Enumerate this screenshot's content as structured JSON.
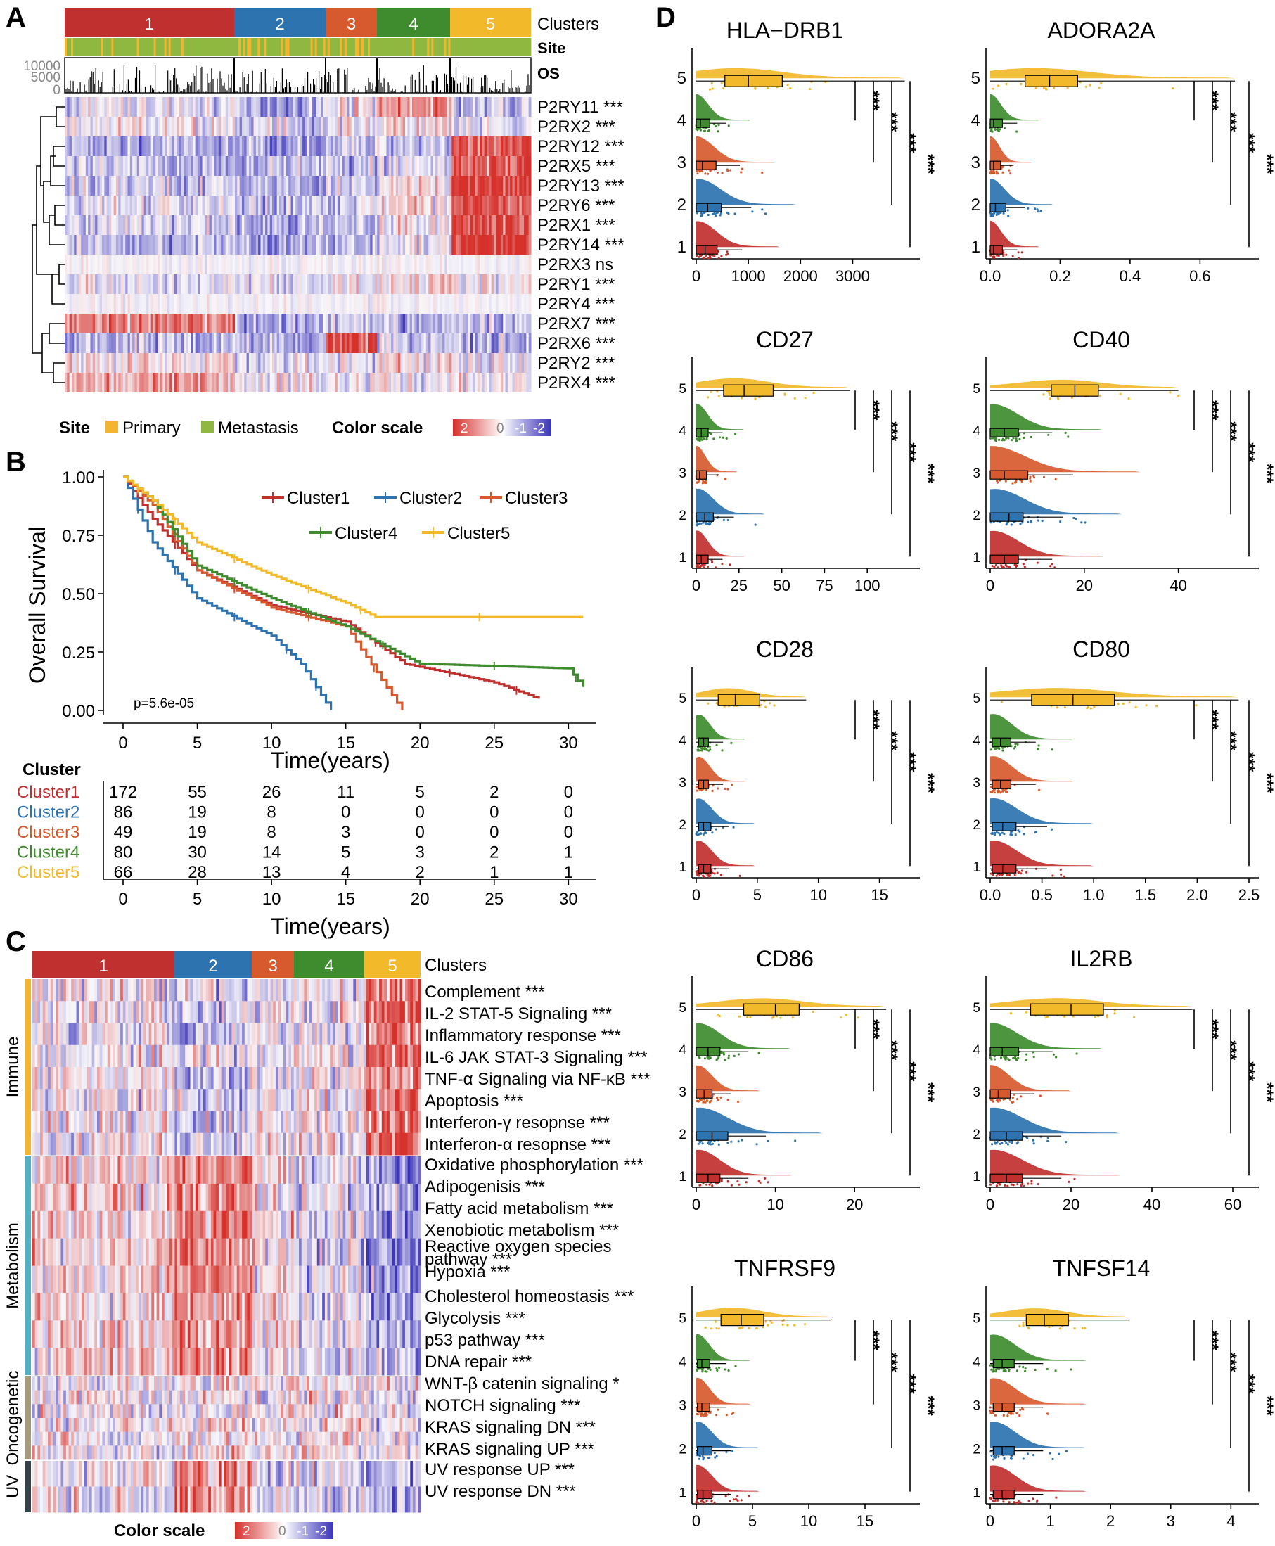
{
  "colors": {
    "c1": "#c0302f",
    "c2": "#2d73b0",
    "c3": "#d75a2e",
    "c4": "#3f8c2f",
    "c5": "#f2b92a",
    "primary": "#f3b42f",
    "metastasis": "#8fb840",
    "hi": "#d6312b",
    "mid": "#ffffff",
    "lo": "#3a33b8",
    "immune": "#f3b42f",
    "metabolism": "#52b2c4",
    "oncogenetic": "#a59a7c",
    "uv": "#36424a"
  },
  "panelA": {
    "label": "A",
    "clusters_label": "Clusters",
    "site_label": "Site",
    "os_label": "OS",
    "cluster_names": [
      "1",
      "2",
      "3",
      "4",
      "5"
    ],
    "os_ticks": [
      "10000",
      "5000",
      "0"
    ],
    "genes": [
      "P2RY11 ***",
      "P2RX2 ***",
      "P2RY12 ***",
      "P2RX5 ***",
      "P2RY13 ***",
      "P2RY6 ***",
      "P2RX1 ***",
      "P2RY14 ***",
      "P2RX3 ns",
      "P2RY1 ***",
      "P2RY4 ***",
      "P2RX7 ***",
      "P2RX6 ***",
      "P2RY2 ***",
      "P2RX4 ***"
    ],
    "legend": {
      "site": "Site",
      "primary": "Primary",
      "metastasis": "Metastasis",
      "color_scale": "Color scale",
      "scale_ticks": [
        "2",
        "0",
        "-1",
        "-2"
      ]
    }
  },
  "panelB": {
    "label": "B",
    "ylabel": "Overall Survival",
    "xlabel": "Time(years)",
    "pvalue": "p=5.6e-05",
    "x_ticks": [
      "0",
      "5",
      "10",
      "15",
      "20",
      "25",
      "30"
    ],
    "y_ticks": [
      "1.00",
      "0.75",
      "0.50",
      "0.25",
      "0.00"
    ],
    "legend": [
      "Cluster1",
      "Cluster2",
      "Cluster3",
      "Cluster4",
      "Cluster5"
    ],
    "risk_title": "Cluster",
    "risk": [
      [
        "172",
        "55",
        "26",
        "11",
        "5",
        "2",
        "0"
      ],
      [
        "86",
        "19",
        "8",
        "0",
        "0",
        "0",
        "0"
      ],
      [
        "49",
        "19",
        "8",
        "3",
        "0",
        "0",
        "0"
      ],
      [
        "80",
        "30",
        "14",
        "5",
        "3",
        "2",
        "1"
      ],
      [
        "66",
        "28",
        "13",
        "4",
        "2",
        "1",
        "1"
      ]
    ]
  },
  "panelC": {
    "label": "C",
    "clusters_label": "Clusters",
    "cluster_names": [
      "1",
      "2",
      "3",
      "4",
      "5"
    ],
    "groups": [
      "Immune",
      "Metabolism",
      "Oncogenetic",
      "UV"
    ],
    "pathways": [
      "Complement ***",
      "IL-2 STAT-5 Signaling ***",
      "Inflammatory response ***",
      "IL-6 JAK STAT-3 Signaling ***",
      "TNF-α Signaling via NF-κB ***",
      "Apoptosis ***",
      "Interferon-γ resopnse ***",
      "Interferon-α resopnse ***",
      "Oxidative phosphorylation ***",
      "Adipogenisis ***",
      "Fatty acid metabolism ***",
      "Xenobiotic metabolism ***",
      "Reactive oxygen species",
      "pathway ***",
      "Hypoxia ***",
      "Cholesterol homeostasis ***",
      "Glycolysis ***",
      "p53 pathway ***",
      "DNA repair ***",
      "WNT-β catenin signaling *",
      "NOTCH signaling ***",
      "KRAS signaling DN ***",
      "KRAS signaling UP ***",
      "UV response UP ***",
      "UV response DN ***"
    ],
    "color_scale": "Color scale",
    "scale_ticks": [
      "2",
      "0",
      "-1",
      "-2"
    ]
  },
  "panelD": {
    "label": "D",
    "sig": "***",
    "cluster_ticks": [
      "1",
      "2",
      "3",
      "4",
      "5"
    ],
    "genes": [
      {
        "name": "HLA−DRB1",
        "ticks": [
          "0",
          "1000",
          "2000",
          "3000"
        ],
        "tickvals": [
          0,
          1000,
          2000,
          3000
        ],
        "xmax": 4100,
        "q1": [
          0,
          170,
          400
        ],
        "q2": [
          0,
          220,
          480
        ],
        "q3": [
          0,
          120,
          380
        ],
        "q4": [
          0,
          80,
          260
        ],
        "q5": [
          550,
          1000,
          1650
        ],
        "w5": 4000
      },
      {
        "name": "ADORA2A",
        "ticks": [
          "0.0",
          "0.2",
          "0.4",
          "0.6"
        ],
        "tickvals": [
          0,
          0.2,
          0.4,
          0.6
        ],
        "xmax": 0.74,
        "q1": [
          0,
          0.01,
          0.035
        ],
        "q2": [
          0,
          0.015,
          0.045
        ],
        "q3": [
          0,
          0.01,
          0.03
        ],
        "q4": [
          0,
          0.01,
          0.035
        ],
        "q5": [
          0.1,
          0.17,
          0.25
        ],
        "w5": 0.7
      },
      {
        "name": "CD27",
        "ticks": [
          "0",
          "25",
          "50",
          "75",
          "100"
        ],
        "tickvals": [
          0,
          25,
          50,
          75,
          100
        ],
        "xmax": 125,
        "q1": [
          0,
          3,
          7
        ],
        "q2": [
          0,
          5,
          10
        ],
        "q3": [
          0,
          2,
          6
        ],
        "q4": [
          0,
          3,
          7
        ],
        "q5": [
          16,
          28,
          45
        ],
        "w5": 90
      },
      {
        "name": "CD40",
        "ticks": [
          "0",
          "20",
          "40"
        ],
        "tickvals": [
          0,
          20,
          40
        ],
        "xmax": 55,
        "q1": [
          0,
          3,
          6
        ],
        "q2": [
          0,
          4,
          7
        ],
        "q3": [
          0,
          3,
          8
        ],
        "q4": [
          0,
          3,
          6
        ],
        "q5": [
          13,
          18,
          23
        ],
        "w5": 40
      },
      {
        "name": "CD28",
        "ticks": [
          "0",
          "5",
          "10",
          "15"
        ],
        "tickvals": [
          0,
          5,
          10,
          15
        ],
        "xmax": 17.5,
        "q1": [
          0.2,
          0.6,
          1.2
        ],
        "q2": [
          0.2,
          0.6,
          1.2
        ],
        "q3": [
          0.2,
          0.6,
          1
        ],
        "q4": [
          0.2,
          0.6,
          1
        ],
        "q5": [
          1.8,
          3.2,
          5.2
        ],
        "w5": 9
      },
      {
        "name": "CD80",
        "ticks": [
          "0.0",
          "0.5",
          "1.0",
          "1.5",
          "2.0",
          "2.5"
        ],
        "tickvals": [
          0,
          0.5,
          1,
          1.5,
          2,
          2.5
        ],
        "xmax": 2.5,
        "q1": [
          0.02,
          0.12,
          0.25
        ],
        "q2": [
          0.02,
          0.12,
          0.25
        ],
        "q3": [
          0.02,
          0.1,
          0.2
        ],
        "q4": [
          0.02,
          0.1,
          0.2
        ],
        "q5": [
          0.4,
          0.8,
          1.2
        ],
        "w5": 2.4
      },
      {
        "name": "CD86",
        "ticks": [
          "0",
          "10",
          "20"
        ],
        "tickvals": [
          0,
          10,
          20
        ],
        "xmax": 27,
        "q1": [
          0,
          1.5,
          3
        ],
        "q2": [
          0,
          2,
          4
        ],
        "q3": [
          0,
          1,
          2
        ],
        "q4": [
          0,
          1.5,
          3
        ],
        "q5": [
          6,
          10,
          13
        ],
        "w5": 24
      },
      {
        "name": "IL2RB",
        "ticks": [
          "0",
          "20",
          "40",
          "60"
        ],
        "tickvals": [
          0,
          20,
          40,
          60
        ],
        "xmax": 64,
        "q1": [
          0,
          4,
          8
        ],
        "q2": [
          0,
          4,
          8
        ],
        "q3": [
          0,
          2,
          5
        ],
        "q4": [
          0,
          3,
          7
        ],
        "q5": [
          10,
          20,
          28
        ],
        "w5": 50
      },
      {
        "name": "TNFRSF9",
        "ticks": [
          "0",
          "5",
          "10",
          "15"
        ],
        "tickvals": [
          0,
          5,
          10,
          15
        ],
        "xmax": 19,
        "q1": [
          0.1,
          0.6,
          1.4
        ],
        "q2": [
          0.1,
          0.6,
          1.4
        ],
        "q3": [
          0.1,
          0.5,
          1.2
        ],
        "q4": [
          0.1,
          0.5,
          1.2
        ],
        "q5": [
          2.2,
          4,
          6
        ],
        "w5": 12
      },
      {
        "name": "TNFSF14",
        "ticks": [
          "0",
          "1",
          "2",
          "3",
          "4"
        ],
        "tickvals": [
          0,
          1,
          2,
          3,
          4
        ],
        "xmax": 4.3,
        "q1": [
          0.05,
          0.2,
          0.4
        ],
        "q2": [
          0.05,
          0.2,
          0.4
        ],
        "q3": [
          0.05,
          0.2,
          0.4
        ],
        "q4": [
          0.05,
          0.2,
          0.4
        ],
        "q5": [
          0.6,
          0.9,
          1.3
        ],
        "w5": 2.3
      }
    ]
  },
  "chart_data": [
    {
      "type": "heatmap",
      "panel": "A",
      "rows": [
        "P2RY11",
        "P2RX2",
        "P2RY12",
        "P2RX5",
        "P2RY13",
        "P2RY6",
        "P2RX1",
        "P2RY14",
        "P2RX3",
        "P2RY1",
        "P2RY4",
        "P2RX7",
        "P2RX6",
        "P2RY2",
        "P2RX4"
      ],
      "columns": [
        "1",
        "2",
        "3",
        "4",
        "5"
      ],
      "significance": [
        "***",
        "***",
        "***",
        "***",
        "***",
        "***",
        "***",
        "***",
        "ns",
        "***",
        "***",
        "***",
        "***",
        "***",
        "***"
      ]
    },
    {
      "type": "line",
      "panel": "B",
      "series": [
        {
          "name": "Cluster1",
          "x": [
            0,
            2,
            5,
            10,
            15,
            19,
            25,
            28
          ],
          "y": [
            1.0,
            0.82,
            0.6,
            0.45,
            0.38,
            0.2,
            0.12,
            0.05
          ]
        },
        {
          "name": "Cluster2",
          "x": [
            0,
            2,
            5,
            10,
            12,
            14
          ],
          "y": [
            1.0,
            0.72,
            0.48,
            0.32,
            0.2,
            0.0
          ]
        },
        {
          "name": "Cluster3",
          "x": [
            0,
            2,
            5,
            10,
            15,
            18.8
          ],
          "y": [
            1.0,
            0.88,
            0.6,
            0.44,
            0.36,
            0.0
          ]
        },
        {
          "name": "Cluster4",
          "x": [
            0,
            2,
            5,
            10,
            15,
            20,
            30,
            31
          ],
          "y": [
            1.0,
            0.9,
            0.62,
            0.48,
            0.36,
            0.2,
            0.18,
            0.1
          ]
        },
        {
          "name": "Cluster5",
          "x": [
            0,
            2,
            5,
            10,
            15,
            17,
            31
          ],
          "y": [
            1.0,
            0.9,
            0.72,
            0.58,
            0.46,
            0.4,
            0.4
          ]
        }
      ],
      "ylim": [
        0,
        1
      ],
      "xlim": [
        0,
        31
      ]
    },
    {
      "type": "heatmap",
      "panel": "C",
      "columns": [
        "1",
        "2",
        "3",
        "4",
        "5"
      ]
    }
  ]
}
